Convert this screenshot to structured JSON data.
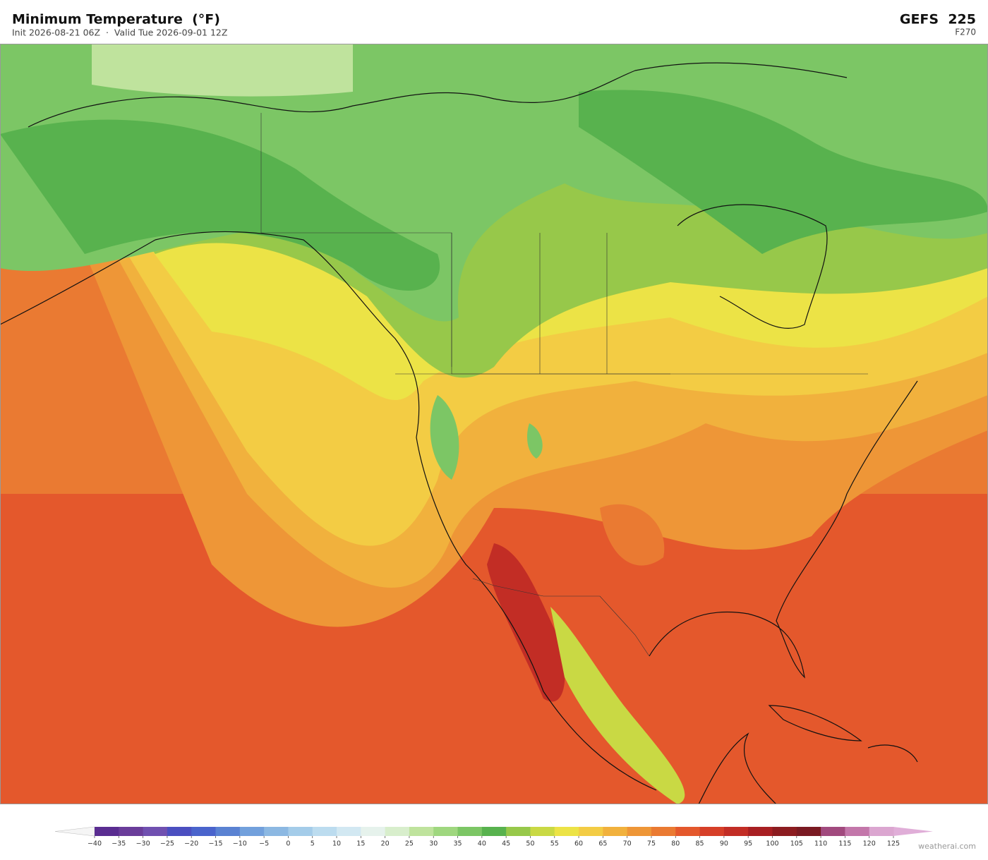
{
  "header": {
    "title": "Minimum Temperature  (°F)",
    "subtitle": "Init 2026-08-21 06Z  ·  Valid Tue 2026-09-01 12Z",
    "model": "GEFS  225",
    "forecast_hour": "F270"
  },
  "colorbar": {
    "ticks": [
      {
        "value": -40,
        "label": "−40"
      },
      {
        "value": -35,
        "label": "−35"
      },
      {
        "value": -30,
        "label": "−30"
      },
      {
        "value": -25,
        "label": "−25"
      },
      {
        "value": -20,
        "label": "−20"
      },
      {
        "value": -15,
        "label": "−15"
      },
      {
        "value": -10,
        "label": "−10"
      },
      {
        "value": -5,
        "label": "−5"
      },
      0,
      5,
      10,
      15,
      20,
      25,
      30,
      35,
      40,
      45,
      50,
      55,
      60,
      65,
      70,
      75,
      80,
      85,
      90,
      95,
      100,
      105,
      110,
      115,
      120,
      125
    ],
    "colors": [
      "#5a2d91",
      "#6a3d9a",
      "#7050b0",
      "#4b4fc0",
      "#4a64cc",
      "#5a82d2",
      "#72a0dc",
      "#8cb8e2",
      "#a4cce9",
      "#bcdcef",
      "#d2e8f2",
      "#e6f2ec",
      "#d8eecc",
      "#bfe39d",
      "#9fd77f",
      "#7cc665",
      "#58b24e",
      "#97c84a",
      "#c9d944",
      "#ece346",
      "#f3cc44",
      "#f1b13d",
      "#ee9637",
      "#ea7a32",
      "#e4582c",
      "#d63f28",
      "#c22d25",
      "#a81f22",
      "#8c1c20",
      "#7a1a22",
      "#a14a7e",
      "#c377aa",
      "#dba6d0"
    ],
    "under_color": "#f5f5f5",
    "over_color": "#e0aed8"
  },
  "footer": {
    "credit": "weatherai.com"
  }
}
